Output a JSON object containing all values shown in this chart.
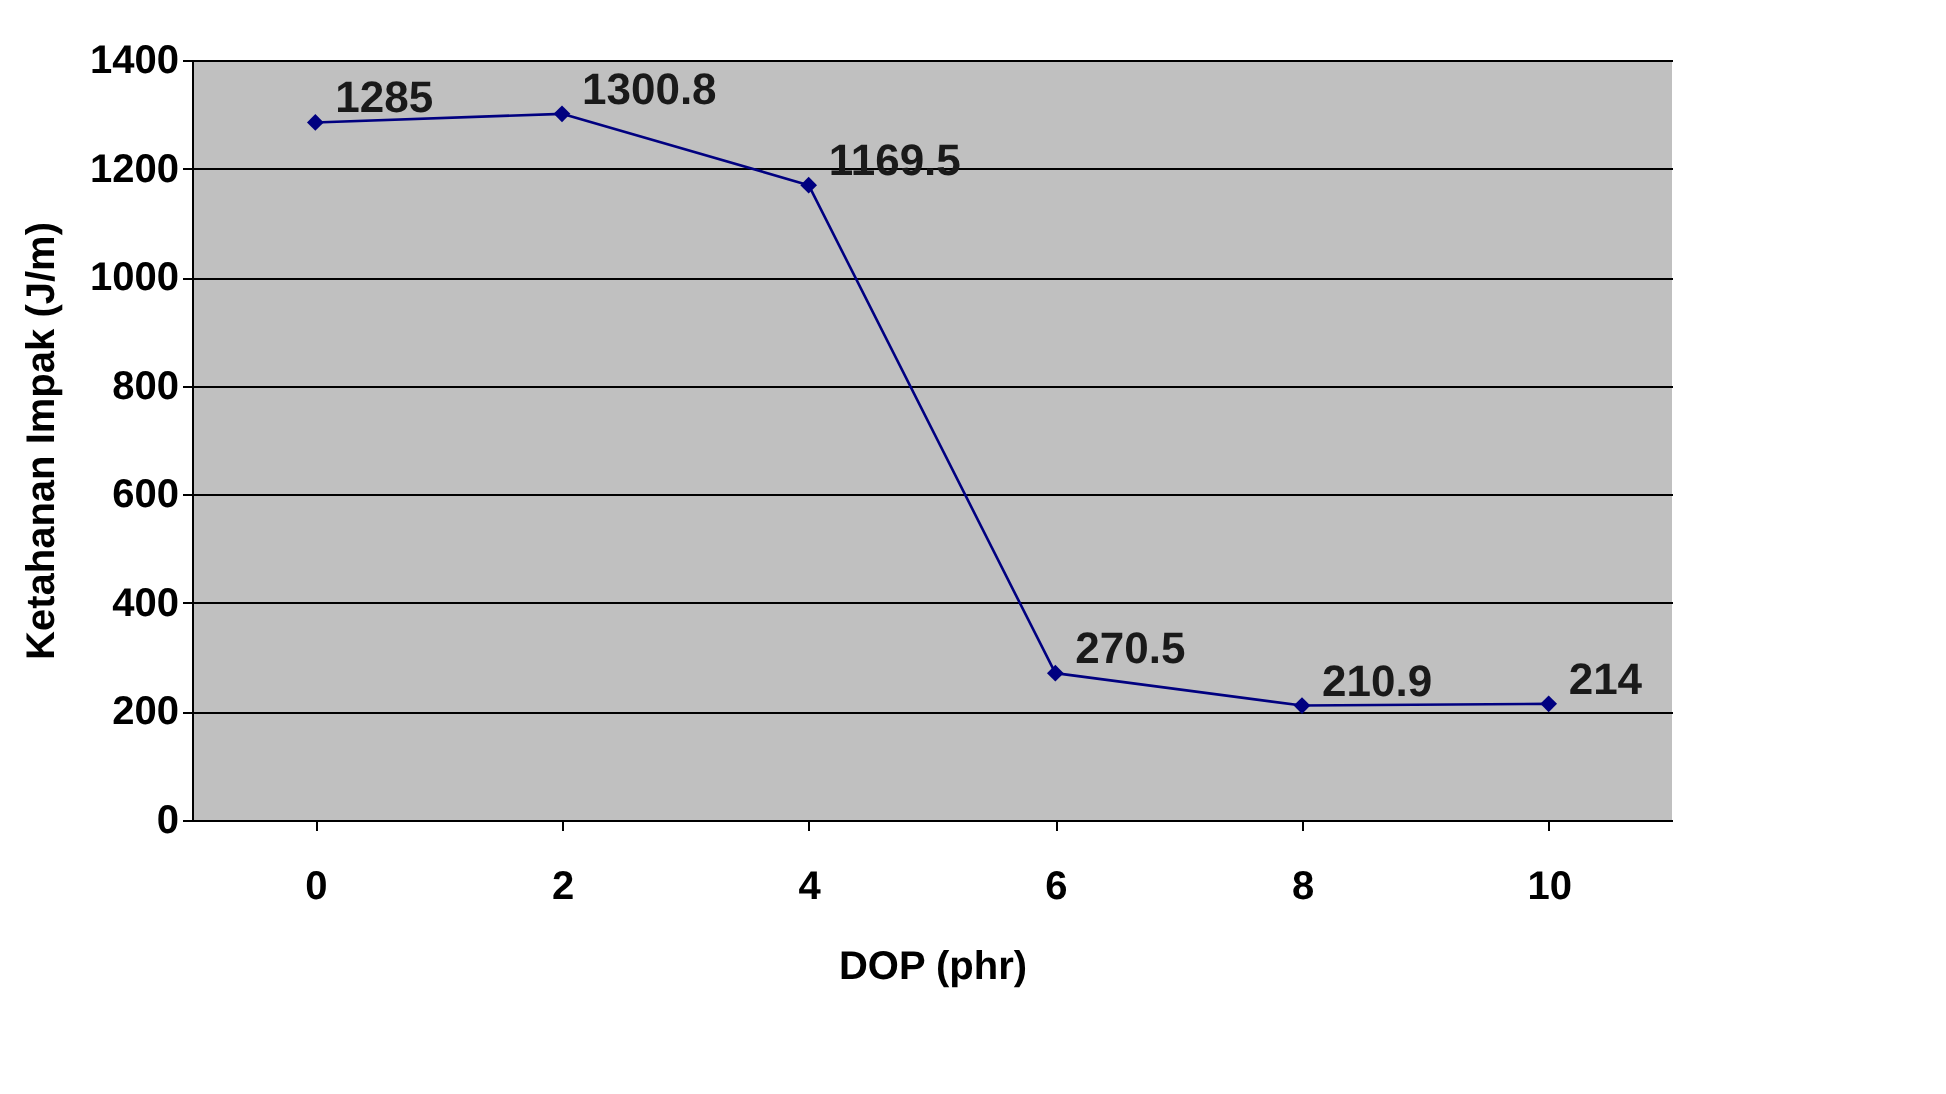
{
  "chart_data": {
    "type": "line",
    "xlabel": "DOP (phr)",
    "ylabel": "Ketahanan Impak (J/m)",
    "categories": [
      "0",
      "2",
      "4",
      "6",
      "8",
      "10"
    ],
    "series": [
      {
        "color": "#000080",
        "values": [
          1285,
          1300.8,
          1169.5,
          270.5,
          210.9,
          214
        ]
      }
    ],
    "ylim": [
      0,
      1400
    ],
    "yticks": [
      0,
      200,
      400,
      600,
      800,
      1000,
      1200,
      1400
    ],
    "grid": "y",
    "marker": "diamond",
    "line_style": "solid",
    "data_labels": true
  }
}
